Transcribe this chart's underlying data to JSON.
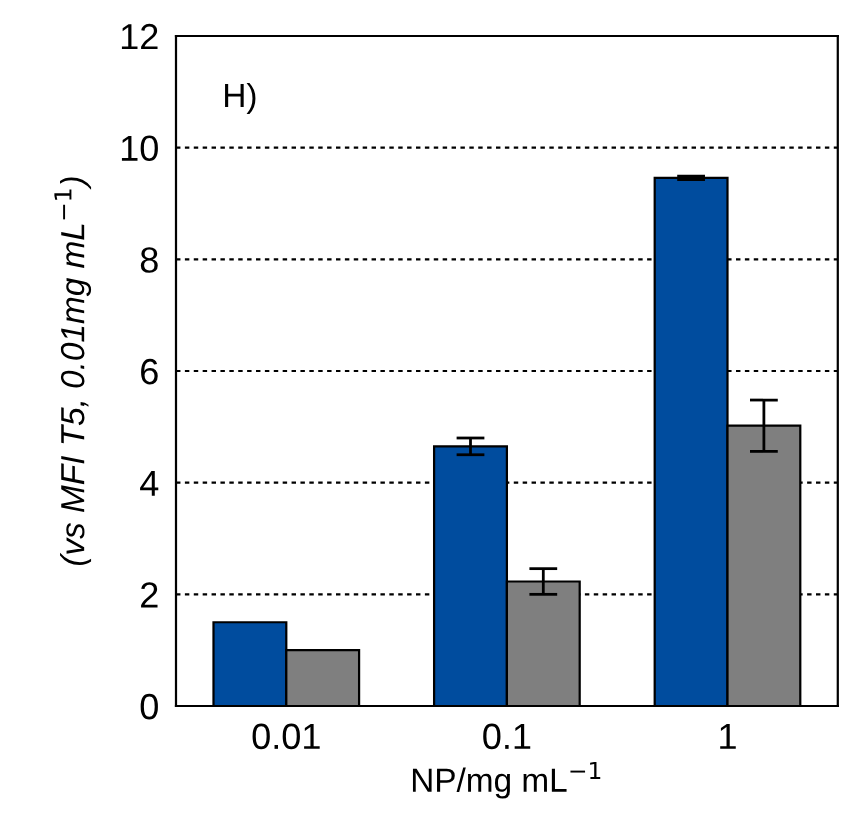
{
  "chart_data": {
    "type": "bar",
    "categories": [
      "0.01",
      "0.1",
      "1"
    ],
    "series": [
      {
        "color": "#004c9e",
        "values": [
          1.5,
          4.65,
          9.46
        ],
        "errors": [
          null,
          0.15,
          0.03
        ]
      },
      {
        "color": "#7f7f7f",
        "values": [
          1.0,
          2.23,
          5.02
        ],
        "errors": [
          null,
          0.23,
          0.46
        ]
      }
    ],
    "xlabel": "NP/mg mL$^{−1}$",
    "ylabel": "(vs MFI T5, 0.01mg mL$^{−1}$)",
    "annotations": [
      "H)"
    ],
    "ylim": [
      0,
      12
    ],
    "yticks": [
      0,
      2,
      4,
      6,
      8,
      10,
      12
    ],
    "grid": "y",
    "legend": false
  }
}
